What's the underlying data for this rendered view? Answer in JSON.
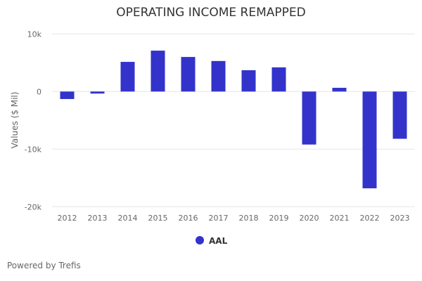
{
  "chart_data": {
    "type": "bar",
    "title": "OPERATING INCOME REMAPPED",
    "ylabel": "Values ($ Mil)",
    "xlabel": "",
    "ylim": [
      -20000,
      10000
    ],
    "yticks": [
      10000,
      0,
      -10000,
      -20000
    ],
    "ytick_labels": [
      "10k",
      "0",
      "-10k",
      "-20k"
    ],
    "categories": [
      "2012",
      "2013",
      "2014",
      "2015",
      "2016",
      "2017",
      "2018",
      "2019",
      "2020",
      "2021",
      "2022",
      "2023"
    ],
    "series": [
      {
        "name": "AAL",
        "color": "#3333cc",
        "values": [
          -1300,
          -350,
          5150,
          7100,
          6000,
          5300,
          3700,
          4200,
          -9200,
          650,
          -16800,
          -8200
        ]
      }
    ],
    "grid": true,
    "legend": "bottom-center"
  },
  "footer": "Powered by Trefis"
}
